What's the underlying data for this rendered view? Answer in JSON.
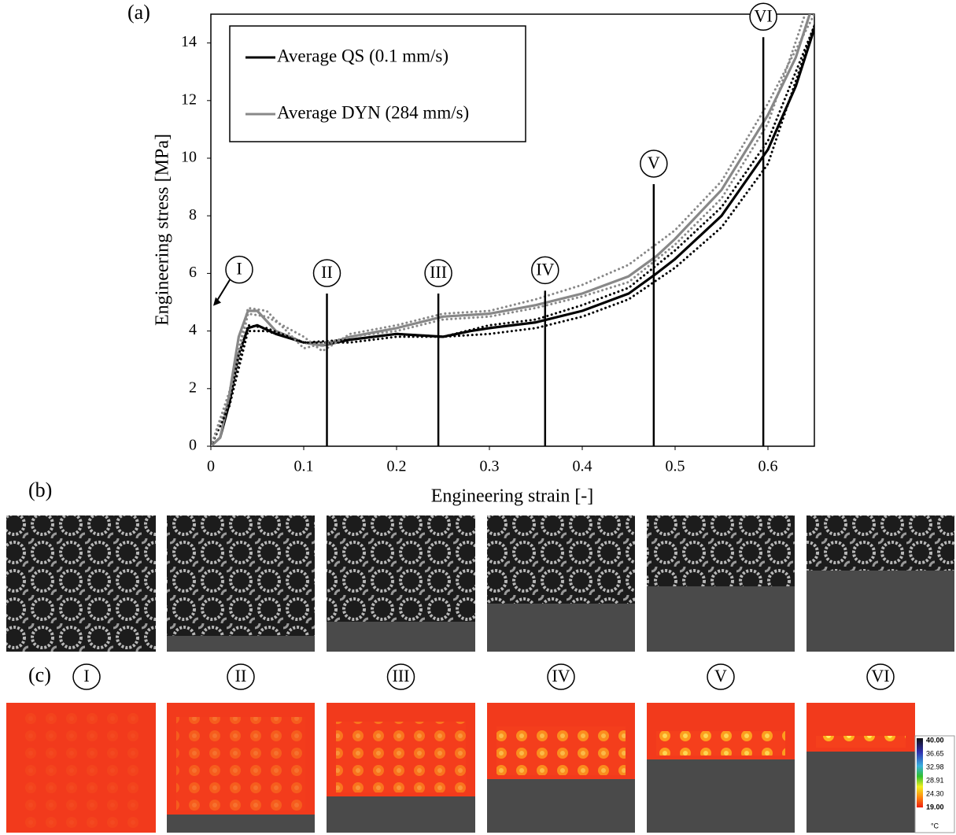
{
  "chart_data": {
    "type": "line",
    "panel_label": "(a)",
    "x_label": "Engineering strain [-]",
    "y_label": "Engineering stress [MPa]",
    "xlim": [
      0,
      0.65
    ],
    "ylim": [
      0,
      15
    ],
    "xticks": [
      0,
      0.1,
      0.2,
      0.3,
      0.4,
      0.5,
      0.6
    ],
    "yticks": [
      0,
      2,
      4,
      6,
      8,
      10,
      12,
      14
    ],
    "legend": "top-left",
    "series": [
      {
        "name": "Average QS (0.1 mm/s)",
        "color": "#000000",
        "style": "solid",
        "x": [
          0,
          0.01,
          0.02,
          0.03,
          0.04,
          0.05,
          0.07,
          0.1,
          0.12,
          0.15,
          0.2,
          0.25,
          0.28,
          0.3,
          0.35,
          0.4,
          0.45,
          0.48,
          0.5,
          0.55,
          0.6,
          0.63,
          0.655
        ],
        "values": [
          0,
          0.3,
          1.5,
          3.2,
          4.1,
          4.2,
          3.9,
          3.6,
          3.5,
          3.7,
          3.9,
          3.8,
          4.0,
          4.1,
          4.3,
          4.7,
          5.3,
          6.0,
          6.5,
          8.0,
          10.3,
          12.5,
          15
        ]
      },
      {
        "name": "Average DYN (284 mm/s)",
        "color": "#888888",
        "style": "solid",
        "x": [
          0,
          0.01,
          0.02,
          0.03,
          0.04,
          0.05,
          0.07,
          0.1,
          0.12,
          0.15,
          0.2,
          0.25,
          0.3,
          0.35,
          0.4,
          0.45,
          0.48,
          0.5,
          0.55,
          0.6,
          0.63,
          0.645
        ],
        "values": [
          0,
          0.3,
          1.8,
          3.8,
          4.7,
          4.7,
          4.0,
          3.6,
          3.5,
          3.8,
          4.1,
          4.5,
          4.6,
          4.9,
          5.3,
          5.9,
          6.6,
          7.2,
          8.9,
          11.5,
          13.5,
          15
        ]
      },
      {
        "color": "#000000",
        "style": "dotted",
        "x": [
          0,
          0.02,
          0.04,
          0.06,
          0.1,
          0.15,
          0.2,
          0.25,
          0.3,
          0.35,
          0.4,
          0.45,
          0.5,
          0.55,
          0.6,
          0.65
        ],
        "values": [
          0,
          1.4,
          4.0,
          4.0,
          3.6,
          3.7,
          3.9,
          3.8,
          3.9,
          4.1,
          4.5,
          5.1,
          6.2,
          7.6,
          9.8,
          14.6
        ]
      },
      {
        "color": "#000000",
        "style": "dotted",
        "x": [
          0,
          0.02,
          0.04,
          0.06,
          0.1,
          0.15,
          0.2,
          0.25,
          0.3,
          0.35,
          0.4,
          0.45,
          0.5,
          0.55,
          0.6,
          0.655
        ],
        "values": [
          0,
          1.6,
          4.2,
          4.1,
          3.6,
          3.6,
          3.8,
          3.8,
          4.2,
          4.4,
          4.9,
          5.5,
          6.8,
          8.3,
          10.6,
          15
        ]
      },
      {
        "color": "#888888",
        "style": "dotted",
        "x": [
          0,
          0.02,
          0.04,
          0.06,
          0.1,
          0.15,
          0.2,
          0.25,
          0.3,
          0.35,
          0.4,
          0.45,
          0.5,
          0.55,
          0.6,
          0.64
        ],
        "values": [
          0,
          1.9,
          4.8,
          4.7,
          3.4,
          3.8,
          4.0,
          4.4,
          4.5,
          4.8,
          5.2,
          5.7,
          7.0,
          8.6,
          11.2,
          15
        ]
      },
      {
        "color": "#888888",
        "style": "dotted",
        "x": [
          0,
          0.02,
          0.04,
          0.06,
          0.1,
          0.12,
          0.15,
          0.2,
          0.25,
          0.3,
          0.35,
          0.4,
          0.45,
          0.5,
          0.55,
          0.6,
          0.65
        ],
        "values": [
          0,
          1.7,
          4.6,
          4.5,
          3.8,
          3.3,
          3.9,
          4.2,
          4.6,
          4.7,
          5.1,
          5.6,
          6.3,
          7.5,
          9.2,
          11.9,
          15
        ]
      }
    ],
    "annotations": [
      {
        "label": "I",
        "x": 0,
        "y": 4.9
      },
      {
        "label": "II",
        "x": 0.125,
        "y": 5.3
      },
      {
        "label": "III",
        "x": 0.245,
        "y": 5.3
      },
      {
        "label": "IV",
        "x": 0.36,
        "y": 5.4
      },
      {
        "label": "V",
        "x": 0.477,
        "y": 9.1
      },
      {
        "label": "VI",
        "x": 0.595,
        "y": 14.2
      }
    ]
  },
  "panel_b": {
    "label": "(b)"
  },
  "panel_c": {
    "label": "(c)",
    "stage_labels": [
      "I",
      "II",
      "III",
      "IV",
      "V",
      "VI"
    ],
    "colorbar": {
      "ticks": [
        "40.00",
        "36.65",
        "32.98",
        "28.91",
        "24.30",
        "19.00"
      ],
      "unit": "°C"
    }
  }
}
